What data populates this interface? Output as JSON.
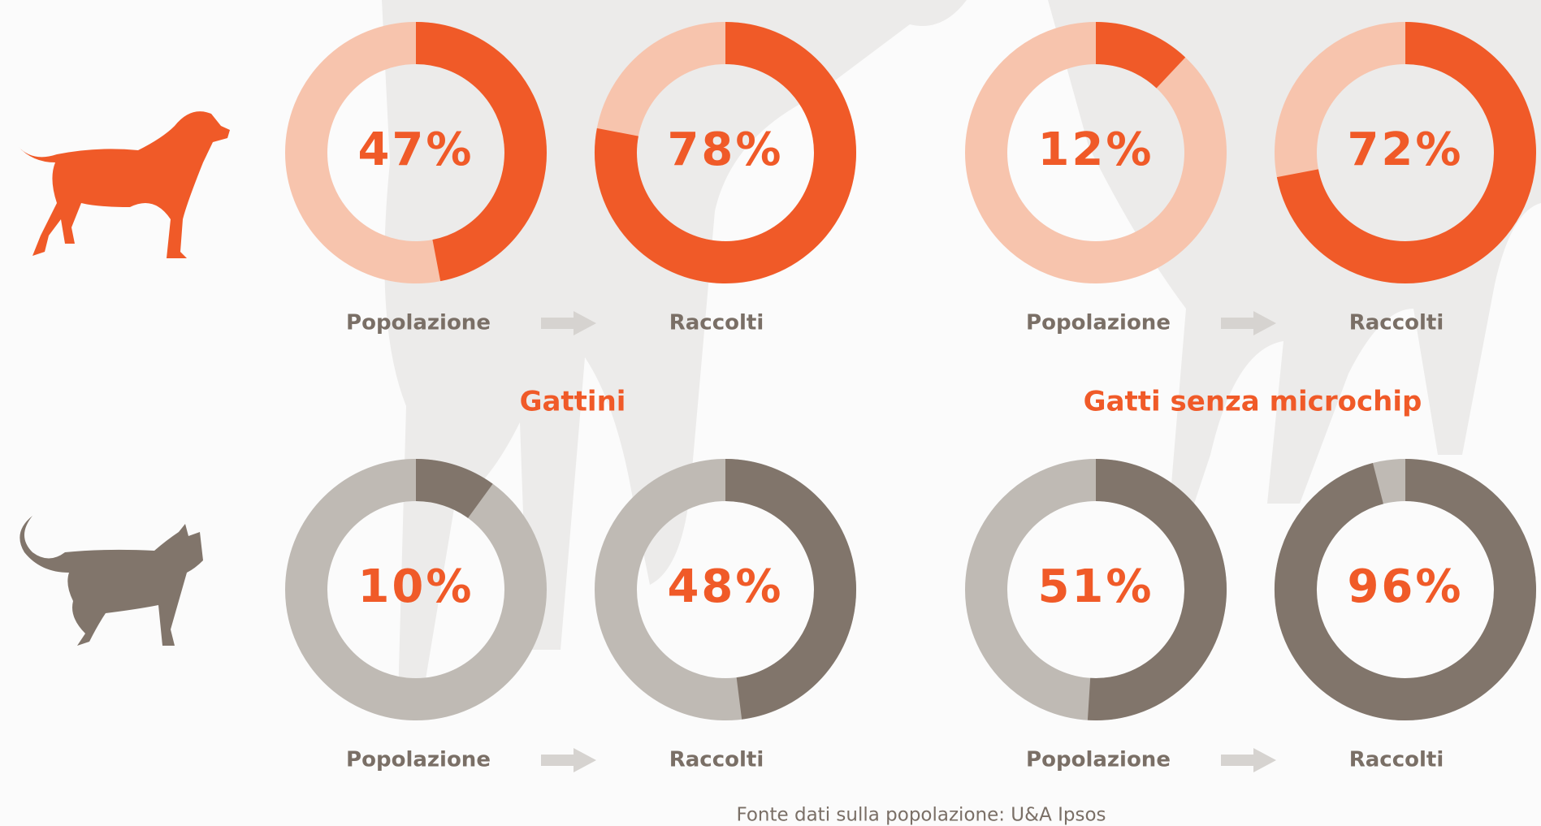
{
  "chart_data": [
    {
      "type": "donut",
      "categories": [
        "Popolazione",
        "Raccolti"
      ],
      "values": [
        47,
        78
      ],
      "value_labels": [
        "47%",
        "78%"
      ],
      "color": "#f05a28",
      "track_color": "#f7c4ad"
    },
    {
      "type": "donut",
      "categories": [
        "Popolazione",
        "Raccolti"
      ],
      "values": [
        12,
        72
      ],
      "value_labels": [
        "12%",
        "72%"
      ],
      "color": "#f05a28",
      "track_color": "#f7c4ad"
    },
    {
      "type": "donut",
      "title": "Gattini",
      "categories": [
        "Popolazione",
        "Raccolti"
      ],
      "values": [
        10,
        48
      ],
      "value_labels": [
        "10%",
        "48%"
      ],
      "color": "#81756b",
      "track_color": "#bfbab4"
    },
    {
      "type": "donut",
      "title": "Gatti senza microchip",
      "categories": [
        "Popolazione",
        "Raccolti"
      ],
      "values": [
        51,
        96
      ],
      "value_labels": [
        "51%",
        "96%"
      ],
      "color": "#81756b",
      "track_color": "#bfbab4"
    }
  ],
  "footer": {
    "source": "Fonte dati sulla popolazione: U&A Ipsos"
  }
}
